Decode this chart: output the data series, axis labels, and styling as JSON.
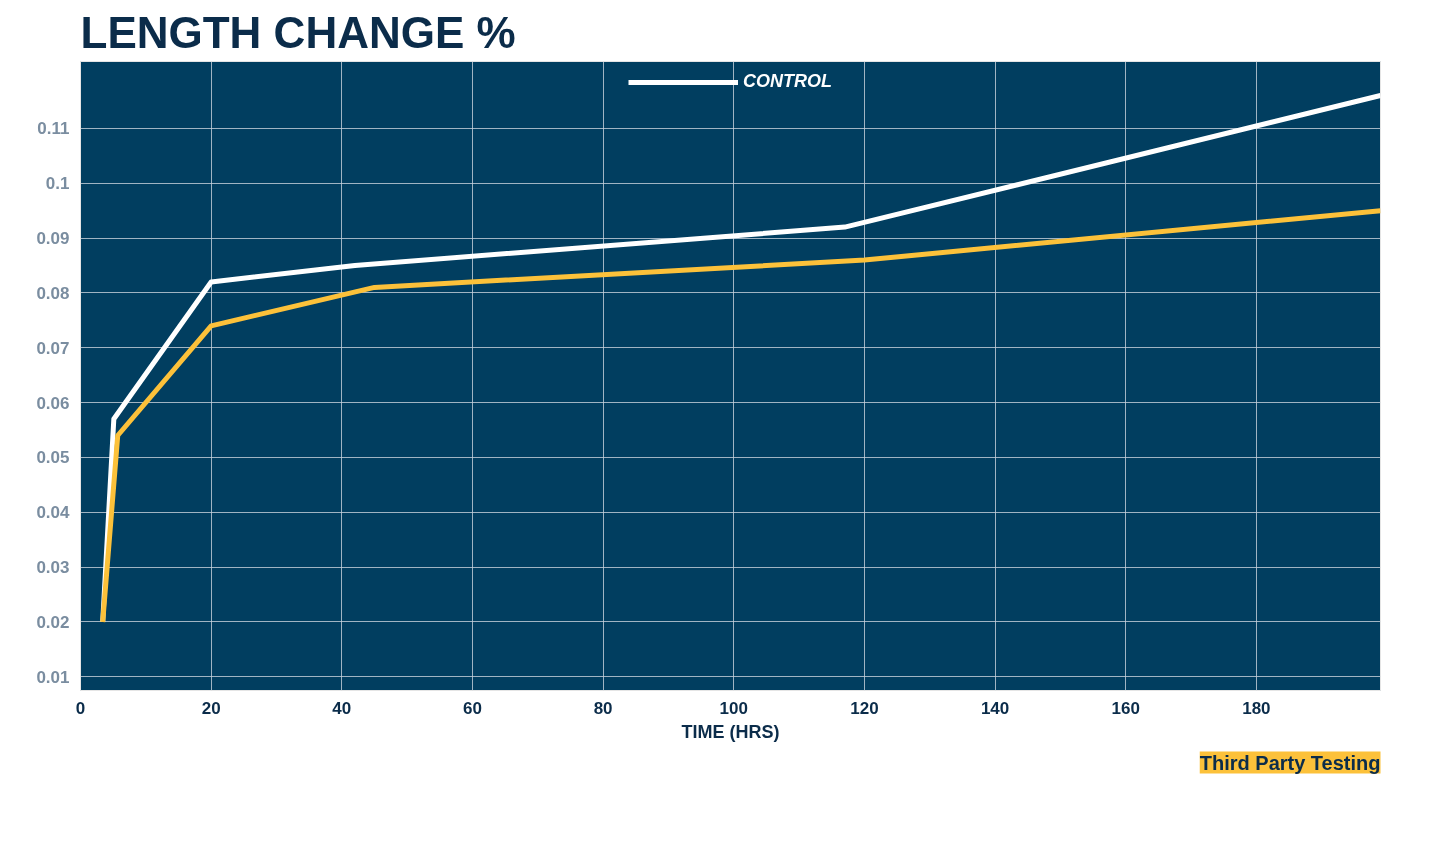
{
  "chart_data": {
    "type": "line",
    "title": "LENGTH CHANGE %",
    "xlabel": "TIME (HRS)",
    "xlim": [
      0,
      199
    ],
    "ylim": [
      0.0075,
      0.1222
    ],
    "xticks": [
      0,
      20,
      40,
      60,
      80,
      100,
      120,
      140,
      160,
      180
    ],
    "yticks": [
      0.01,
      0.02,
      0.03,
      0.04,
      0.05,
      0.06,
      0.07,
      0.08,
      0.09,
      0.1,
      0.11
    ],
    "grid": true,
    "legend": "top",
    "marker": "none",
    "line_style": "solid",
    "annotations": [
      "Third Party Testing"
    ],
    "series": [
      {
        "name": "CONTROL",
        "color": "#ffffff",
        "x": [
          3.4,
          5.1,
          20,
          42,
          117,
          199
        ],
        "values": [
          0.02,
          0.057,
          0.082,
          0.085,
          0.092,
          0.116
        ]
      },
      {
        "color": "#fcc13a",
        "x": [
          3.4,
          5.7,
          20,
          45,
          120,
          199
        ],
        "values": [
          0.02,
          0.054,
          0.074,
          0.081,
          0.086,
          0.095
        ]
      }
    ]
  }
}
